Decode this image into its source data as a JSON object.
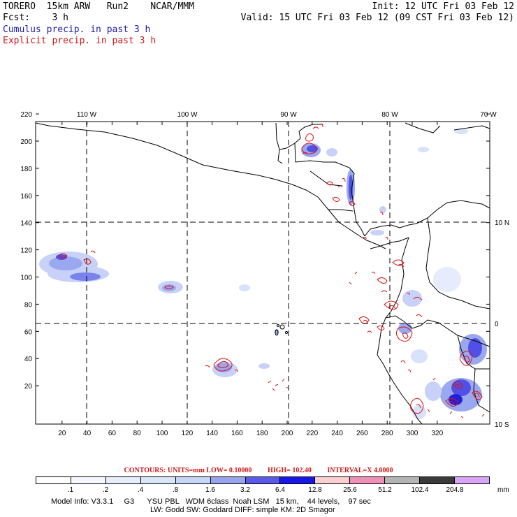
{
  "header": {
    "line1_left": "TORERO  15km ARW   Run2    NCAR/MMM",
    "line1_right": "Init: 12 UTC Fri 03 Feb 12",
    "line2_left": "Fcst:    3 h",
    "line2_right": "Valid: 15 UTC Fri 03 Feb 12 (09 CST Fri 03 Feb 12)",
    "line3": "Cumulus precip. in past 3 h",
    "line4": "Explicit precip. in past 3 h"
  },
  "map": {
    "top_lon_labels": [
      "110 W",
      "100 W",
      "90 W",
      "80 W",
      "70 W"
    ],
    "right_lat_labels": [
      "10 N",
      "0",
      "10 S"
    ],
    "y_ticks": [
      "220",
      "200",
      "180",
      "160",
      "140",
      "120",
      "100",
      "80",
      "60",
      "40",
      "20"
    ],
    "x_ticks": [
      "20",
      "40",
      "60",
      "80",
      "100",
      "120",
      "140",
      "160",
      "180",
      "200",
      "220",
      "240",
      "260",
      "280",
      "300",
      "320"
    ],
    "colors": {
      "land_outline": "#000000",
      "explicit_contour": "#e01010",
      "cumulus_light": "#c8d2f8",
      "cumulus_mid": "#9aa8f0",
      "cumulus_dark": "#5050e6",
      "cumulus_core": "#2020d8"
    }
  },
  "contours": {
    "units": "CONTOURS:  UNITS=mm  LOW= 0.10000",
    "high": "HIGH=  102.40",
    "interval": "INTERVAL=X  4.0000"
  },
  "colorbar": {
    "labels": [
      ".1",
      ".2",
      ".4",
      ".8",
      "1.6",
      "3.2",
      "6.4",
      "12.8",
      "25.6",
      "51.2",
      "102.4",
      "204.8"
    ],
    "unit": "mm",
    "colors": [
      "#ffffff",
      "#f4f7ff",
      "#e6eefc",
      "#d8e6f8",
      "#c8d6f6",
      "#9aa4ee",
      "#5a5ae8",
      "#1818e6",
      "#f8d0d0",
      "#f090b8",
      "#b4b4b4",
      "#3a3a3a",
      "#d8a6f6"
    ]
  },
  "footer": {
    "line1": "Model Info: V3.3.1     G3      YSU PBL   WDM 6class  Noah LSM   15 km,    44 levels,    97 sec",
    "line2": "LW: Godd SW: Goddard DIFF: simple KM: 2D Smagor"
  }
}
